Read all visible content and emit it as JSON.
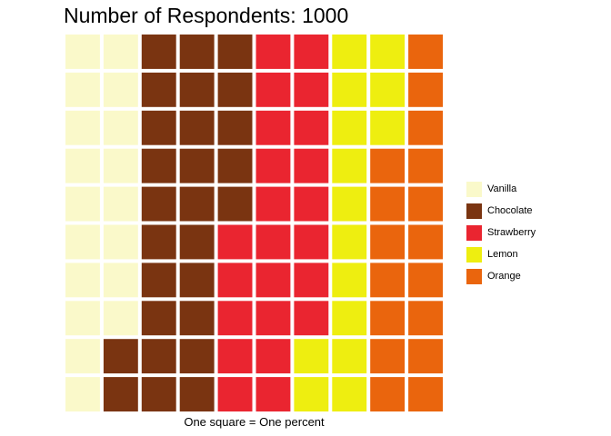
{
  "chart_data": {
    "type": "waffle",
    "title": "Number of Respondents: 1000",
    "xlabel": "One square = One percent",
    "ylabel": "",
    "grid": false,
    "legend_position": "right",
    "rows": 10,
    "columns": 10,
    "fill_order": "column-major, left to right, top to bottom within each column",
    "categories": [
      "Vanilla",
      "Chocolate",
      "Strawberry",
      "Lemon",
      "Orange"
    ],
    "values": [
      18,
      27,
      23,
      15,
      17
    ],
    "unit": "percent",
    "colors": [
      "#FAF9CA",
      "#7A3411",
      "#EA2530",
      "#EEEE10",
      "#EA650D"
    ],
    "legend": [
      {
        "name": "Vanilla",
        "color": "#FAF9CA"
      },
      {
        "name": "Chocolate",
        "color": "#7A3411"
      },
      {
        "name": "Strawberry",
        "color": "#EA2530"
      },
      {
        "name": "Lemon",
        "color": "#EEEE10"
      },
      {
        "name": "Orange",
        "color": "#EA650D"
      }
    ]
  }
}
